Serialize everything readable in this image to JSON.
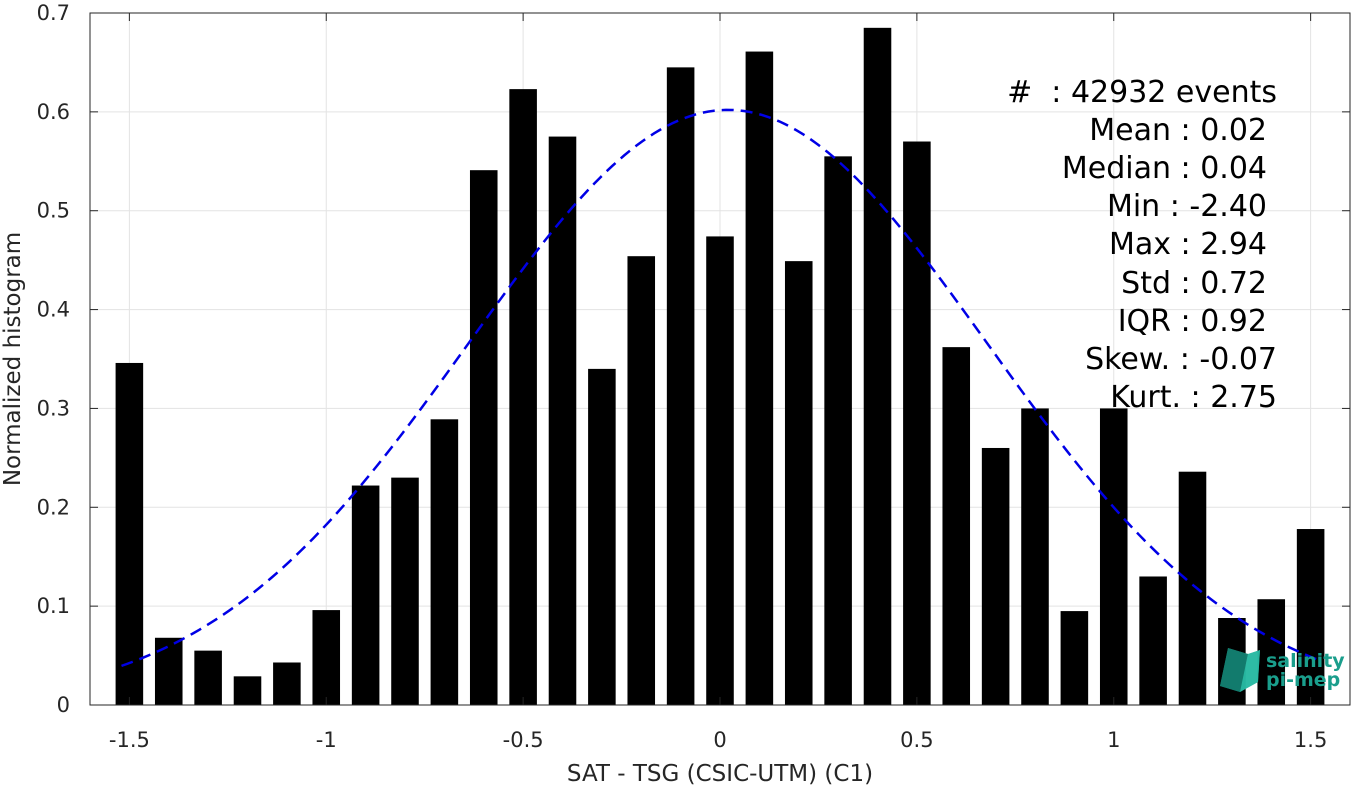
{
  "chart_data": {
    "type": "bar",
    "xlabel": "SAT - TSG (CSIC-UTM) (C1)",
    "ylabel": "Normalized histogram",
    "xlim": [
      -1.6,
      1.6
    ],
    "ylim": [
      0,
      0.7
    ],
    "xticks": [
      -1.5,
      -1,
      -0.5,
      0,
      0.5,
      1,
      1.5
    ],
    "xtick_labels": [
      "-1.5",
      "-1",
      "-0.5",
      "0",
      "0.5",
      "1",
      "1.5"
    ],
    "yticks": [
      0,
      0.1,
      0.2,
      0.3,
      0.4,
      0.5,
      0.6,
      0.7
    ],
    "ytick_labels": [
      "0",
      "0.1",
      "0.2",
      "0.3",
      "0.4",
      "0.5",
      "0.6",
      "0.7"
    ],
    "grid": true,
    "bar_color": "#000000",
    "bar_width": 0.07,
    "x": [
      -1.5,
      -1.4,
      -1.3,
      -1.2,
      -1.1,
      -1.0,
      -0.9,
      -0.8,
      -0.7,
      -0.6,
      -0.5,
      -0.4,
      -0.3,
      -0.2,
      -0.1,
      0.0,
      0.1,
      0.2,
      0.3,
      0.4,
      0.5,
      0.6,
      0.7,
      0.8,
      0.9,
      1.0,
      1.1,
      1.2,
      1.3,
      1.4,
      1.5
    ],
    "values": [
      0.346,
      0.068,
      0.055,
      0.029,
      0.043,
      0.096,
      0.222,
      0.23,
      0.289,
      0.541,
      0.623,
      0.575,
      0.34,
      0.454,
      0.645,
      0.474,
      0.661,
      0.449,
      0.555,
      0.685,
      0.57,
      0.362,
      0.26,
      0.3,
      0.095,
      0.3,
      0.13,
      0.236,
      0.088,
      0.107,
      0.178
    ],
    "fit_curve": {
      "style": "dashed",
      "color": "#0000e6",
      "mean": 0.02,
      "std": 0.66,
      "peak": 0.602,
      "x_range": [
        -1.52,
        1.52
      ]
    },
    "stats_box": {
      "position": "top-right",
      "lines": [
        "#  : 42932 events",
        "Mean : 0.02",
        "Median : 0.04",
        "Min : -2.40",
        "Max : 2.94",
        "Std : 0.72",
        "IQR : 0.92",
        "Skew. : -0.07",
        "Kurt. : 2.75"
      ]
    }
  },
  "logo": {
    "line1": "salinity",
    "line2": "pi-mep",
    "color": "#1a9e8c"
  }
}
